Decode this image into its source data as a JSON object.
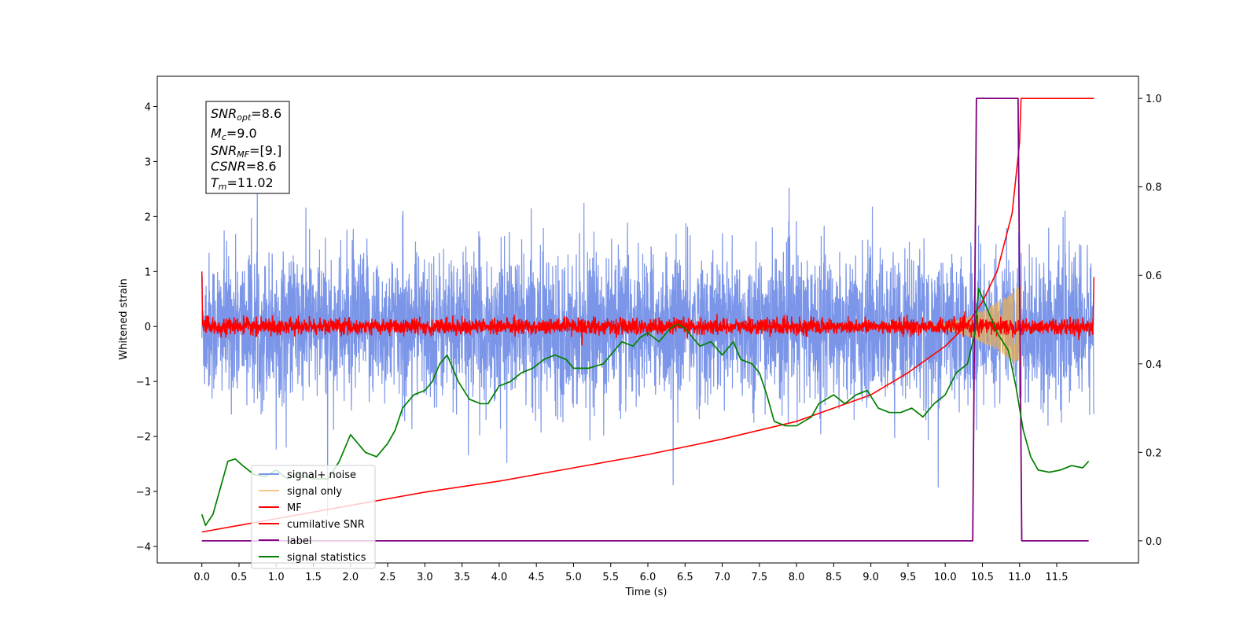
{
  "chart_data": {
    "type": "line",
    "xlabel": "Time (s)",
    "ylabel": "Whitened strain",
    "xlim": [
      -0.6,
      12.6
    ],
    "ylim": [
      -4.3,
      4.55
    ],
    "y2lim": [
      -0.05,
      1.05
    ],
    "x_ticks": [
      "0.0",
      "0.5",
      "1.0",
      "1.5",
      "2.0",
      "2.5",
      "3.0",
      "3.5",
      "4.0",
      "4.5",
      "5.0",
      "5.5",
      "6.0",
      "6.5",
      "7.0",
      "7.5",
      "8.0",
      "8.5",
      "9.0",
      "9.5",
      "10.0",
      "10.5",
      "11.0",
      "11.5"
    ],
    "y_ticks": [
      "−4",
      "−3",
      "−2",
      "−1",
      "0",
      "1",
      "2",
      "3",
      "4"
    ],
    "y2_ticks": [
      "0.0",
      "0.2",
      "0.4",
      "0.6",
      "0.8",
      "1.0"
    ],
    "legend_position": "lower-left",
    "annotation": {
      "snr_opt": {
        "sym": "SNR",
        "sub": "opt",
        "val": "=8.6"
      },
      "mc": {
        "sym": "M",
        "sub": "c",
        "val": "=9.0"
      },
      "snr_mf": {
        "sym": "SNR",
        "sub": "MF",
        "val": "=[9.]"
      },
      "csnr": {
        "sym": "CSNR",
        "sub": "",
        "val": "=8.6"
      },
      "tm": {
        "sym": "T",
        "sub": "m",
        "val": "=11.02"
      }
    },
    "series": [
      {
        "name": "signal+ noise",
        "color": "#7b95e8",
        "axis": "left",
        "x_range": [
          0,
          12
        ],
        "amplitude_typical": 1.2,
        "max": 4.15,
        "min": -3.75
      },
      {
        "name": "signal only",
        "color": "#f0b050",
        "axis": "left",
        "chirp_start": 9.5,
        "chirp_end": 11.02,
        "peak_amplitude": 0.75
      },
      {
        "name": "MF",
        "color": "#ff0000",
        "axis": "left",
        "x_range": [
          0,
          12
        ],
        "amplitude_typical": 0.12,
        "start_value": 1.0,
        "end_value": 0.9
      },
      {
        "name": "cumilative SNR",
        "color": "#ff0000",
        "axis": "right",
        "x": [
          0,
          0.5,
          1.0,
          2.0,
          3.0,
          4.0,
          5.0,
          6.0,
          7.0,
          8.0,
          8.5,
          9.0,
          9.5,
          10.0,
          10.3,
          10.5,
          10.7,
          10.9,
          11.0,
          11.02,
          12.0
        ],
        "values": [
          0.02,
          0.035,
          0.05,
          0.08,
          0.11,
          0.135,
          0.165,
          0.195,
          0.23,
          0.27,
          0.3,
          0.33,
          0.38,
          0.44,
          0.49,
          0.54,
          0.61,
          0.74,
          0.9,
          1.0,
          1.0
        ]
      },
      {
        "name": "label",
        "color": "#800080",
        "axis": "right",
        "x": [
          0,
          10.37,
          10.42,
          10.98,
          11.03,
          11.93
        ],
        "values": [
          0,
          0,
          1,
          1,
          0,
          0
        ]
      },
      {
        "name": "signal statistics",
        "color": "#008000",
        "axis": "right",
        "x": [
          0,
          0.05,
          0.15,
          0.25,
          0.35,
          0.45,
          0.55,
          0.7,
          0.85,
          1.0,
          1.15,
          1.3,
          1.5,
          1.7,
          1.85,
          2.0,
          2.1,
          2.2,
          2.35,
          2.5,
          2.6,
          2.7,
          2.85,
          3.0,
          3.1,
          3.2,
          3.3,
          3.35,
          3.45,
          3.6,
          3.75,
          3.85,
          4.0,
          4.15,
          4.3,
          4.45,
          4.6,
          4.75,
          4.9,
          5.0,
          5.2,
          5.4,
          5.55,
          5.65,
          5.8,
          5.9,
          6.0,
          6.15,
          6.3,
          6.4,
          6.5,
          6.6,
          6.7,
          6.85,
          7.0,
          7.15,
          7.25,
          7.4,
          7.5,
          7.6,
          7.7,
          7.85,
          8.0,
          8.1,
          8.2,
          8.3,
          8.4,
          8.5,
          8.65,
          8.8,
          8.95,
          9.1,
          9.25,
          9.4,
          9.55,
          9.7,
          9.85,
          10.0,
          10.15,
          10.3,
          10.4,
          10.45,
          10.55,
          10.7,
          10.85,
          10.95,
          11.05,
          11.15,
          11.25,
          11.4,
          11.55,
          11.7,
          11.85,
          11.93
        ],
        "values": [
          0.06,
          0.035,
          0.06,
          0.12,
          0.18,
          0.185,
          0.17,
          0.15,
          0.145,
          0.16,
          0.14,
          0.15,
          0.14,
          0.14,
          0.18,
          0.24,
          0.22,
          0.2,
          0.19,
          0.22,
          0.25,
          0.3,
          0.33,
          0.34,
          0.36,
          0.4,
          0.42,
          0.4,
          0.36,
          0.32,
          0.31,
          0.31,
          0.35,
          0.36,
          0.38,
          0.39,
          0.41,
          0.42,
          0.41,
          0.39,
          0.39,
          0.4,
          0.43,
          0.45,
          0.44,
          0.46,
          0.47,
          0.45,
          0.48,
          0.49,
          0.48,
          0.46,
          0.44,
          0.45,
          0.42,
          0.45,
          0.41,
          0.4,
          0.38,
          0.33,
          0.27,
          0.26,
          0.26,
          0.27,
          0.28,
          0.31,
          0.32,
          0.33,
          0.31,
          0.33,
          0.34,
          0.3,
          0.29,
          0.29,
          0.3,
          0.28,
          0.31,
          0.33,
          0.38,
          0.4,
          0.47,
          0.57,
          0.53,
          0.47,
          0.43,
          0.35,
          0.25,
          0.19,
          0.16,
          0.155,
          0.16,
          0.17,
          0.165,
          0.18
        ]
      }
    ]
  }
}
